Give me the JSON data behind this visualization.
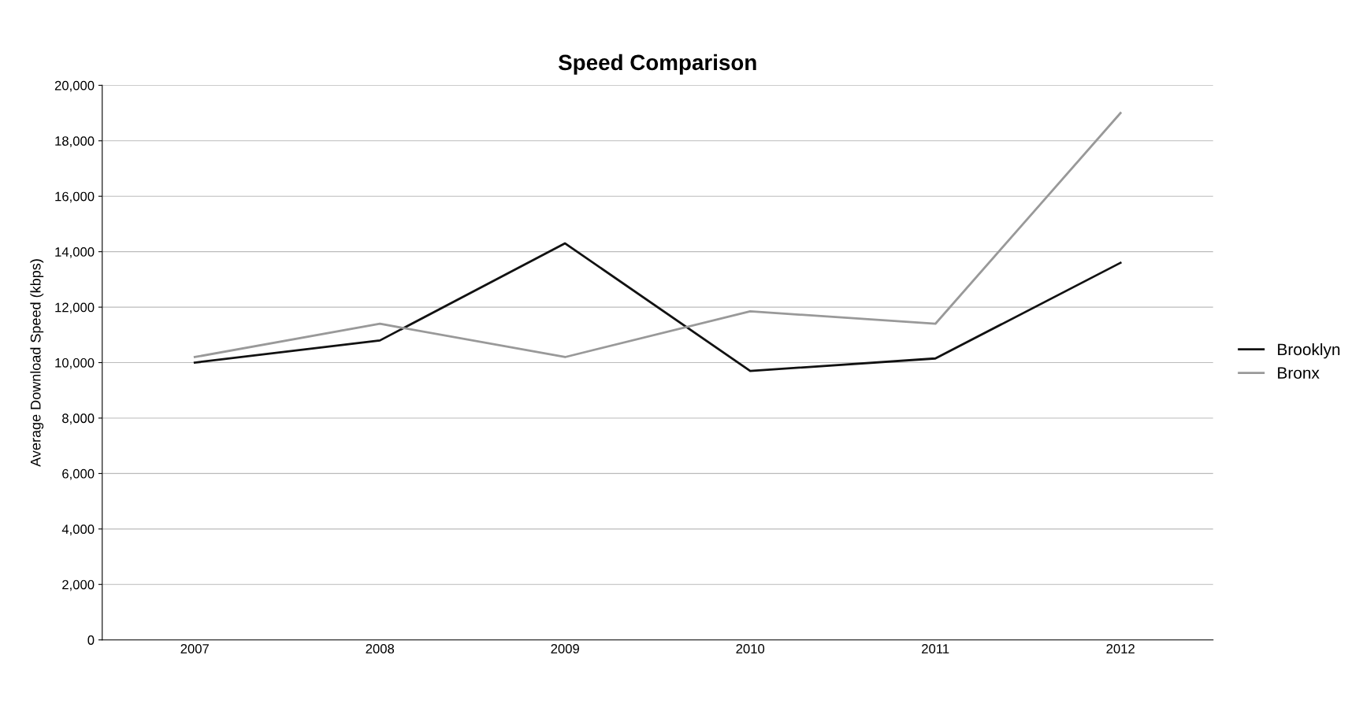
{
  "chart_data": {
    "type": "line",
    "title": "Speed Comparison",
    "ylabel": "Average Download Speed (kbps)",
    "categories": [
      "2007",
      "2008",
      "2009",
      "2010",
      "2011",
      "2012"
    ],
    "series": [
      {
        "name": "Brooklyn",
        "color": "#111111",
        "values": [
          10000,
          10800,
          14300,
          9700,
          10150,
          13600
        ]
      },
      {
        "name": "Bronx",
        "color": "#999999",
        "values": [
          10200,
          11400,
          10200,
          11850,
          11400,
          19000
        ]
      }
    ],
    "ylim": [
      0,
      20000
    ],
    "yticks": [
      {
        "value": 0,
        "label": "0"
      },
      {
        "value": 2000,
        "label": "2,000"
      },
      {
        "value": 4000,
        "label": "4,000"
      },
      {
        "value": 6000,
        "label": "6,000"
      },
      {
        "value": 8000,
        "label": "8,000"
      },
      {
        "value": 10000,
        "label": "10,000"
      },
      {
        "value": 12000,
        "label": "12,000"
      },
      {
        "value": 14000,
        "label": "14,000"
      },
      {
        "value": 16000,
        "label": "16,000"
      },
      {
        "value": 18000,
        "label": "18,000"
      },
      {
        "value": 20000,
        "label": "20,000"
      }
    ],
    "grid": "y",
    "legend": "right",
    "marker": "none",
    "line_style": "solid"
  }
}
